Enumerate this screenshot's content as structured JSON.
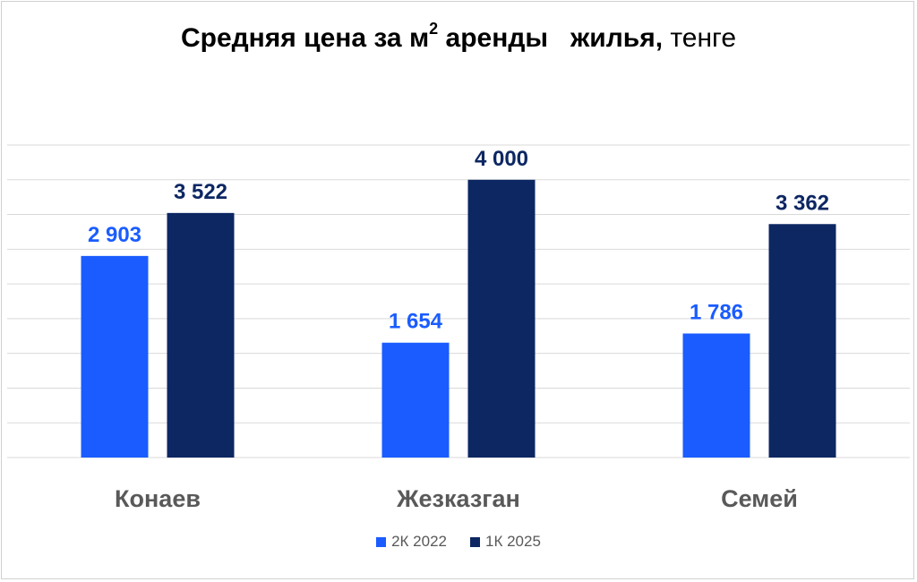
{
  "title": {
    "bold_part": "Средняя цена за м",
    "superscript": "2",
    "bold_part2": " аренды   жилья,",
    "normal_part": " тенге"
  },
  "colors": {
    "series1": "#1a5cff",
    "series2": "#0d2763",
    "label1": "#1a5cff",
    "label2": "#0d2763",
    "category": "#595959",
    "grid": "#d9d9d9"
  },
  "chart_data": {
    "type": "bar",
    "categories": [
      "Конаев",
      "Жезказган",
      "Семей"
    ],
    "series": [
      {
        "name": "2К 2022",
        "values": [
          2903,
          1654,
          1786
        ],
        "labels": [
          "2 903",
          "1 654",
          "1 786"
        ]
      },
      {
        "name": "1К 2025",
        "values": [
          3522,
          4000,
          3362
        ],
        "labels": [
          "3 522",
          "4 000",
          "3 362"
        ]
      }
    ],
    "ylim": [
      0,
      4500
    ],
    "grid": true,
    "legend": "bottom-center"
  }
}
